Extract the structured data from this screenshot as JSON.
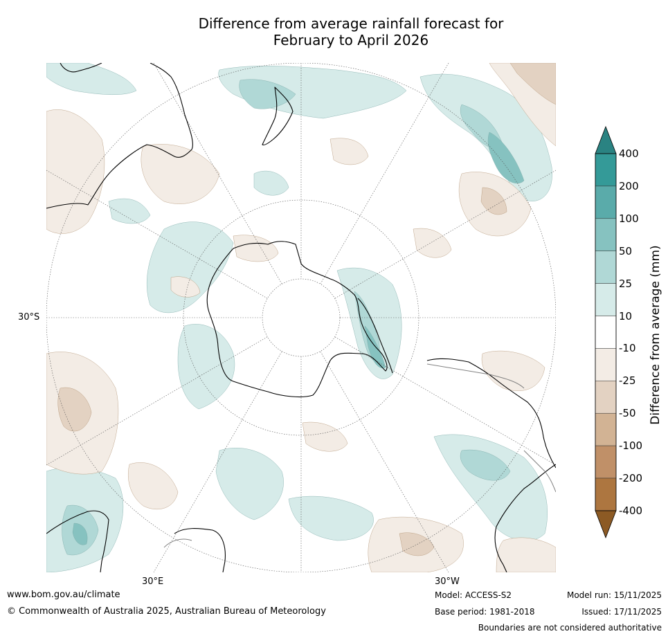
{
  "title": {
    "line1": "Difference from average rainfall forecast for",
    "line2": "February to April 2026"
  },
  "map": {
    "projection": "south polar stereographic",
    "labels": {
      "lat_30s": "30°S",
      "lon_30e": "30°E",
      "lon_30w": "30°W"
    },
    "colors": {
      "pos_25": "#d6ebe9",
      "pos_50": "#b0d8d6",
      "pos_100": "#86c2c0",
      "pos_200": "#5aabaa",
      "neg_25": "#f3ece5",
      "neg_50": "#e3d2c2",
      "neg_100": "#d2b394",
      "coast": "#000000",
      "border": "#808080"
    }
  },
  "colorbar": {
    "title": "Difference from average (mm)",
    "ticks": [
      "400",
      "200",
      "100",
      "50",
      "25",
      "10",
      "-10",
      "-25",
      "-50",
      "-100",
      "-200",
      "-400"
    ],
    "colors": [
      "#2a8382",
      "#349a98",
      "#5aabaa",
      "#86c2c0",
      "#b0d8d6",
      "#d6ebe9",
      "#ffffff",
      "#f3ece5",
      "#e3d2c2",
      "#d2b394",
      "#c09068",
      "#ad7640",
      "#8c5a24"
    ]
  },
  "footer": {
    "website": "www.bom.gov.au/climate",
    "copyright": "© Commonwealth of Australia 2025, Australian Bureau of Meteorology",
    "model": "Model: ACCESS-S2",
    "model_run": "Model run: 15/11/2025",
    "base_period": "Base period: 1981-2018",
    "issued": "Issued: 17/11/2025",
    "disclaimer": "Boundaries are not considered authoritative"
  }
}
